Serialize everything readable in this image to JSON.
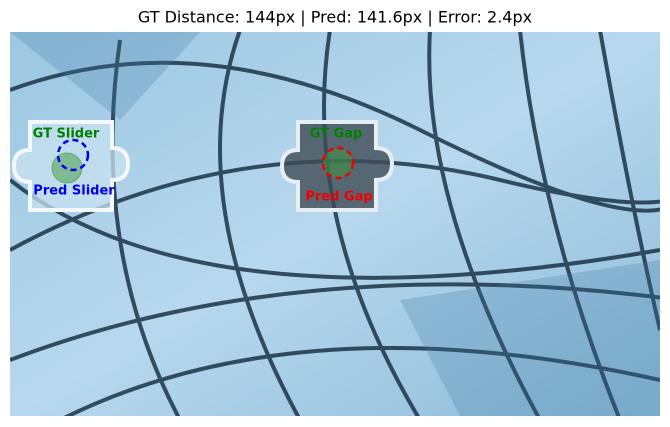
{
  "title": "GT Distance: 144px | Pred: 141.6px | Error: 2.4px",
  "labels": {
    "gt_slider": "GT Slider",
    "pred_slider": "Pred Slider",
    "gt_gap": "GT Gap",
    "pred_gap": "Pred Gap"
  }
}
